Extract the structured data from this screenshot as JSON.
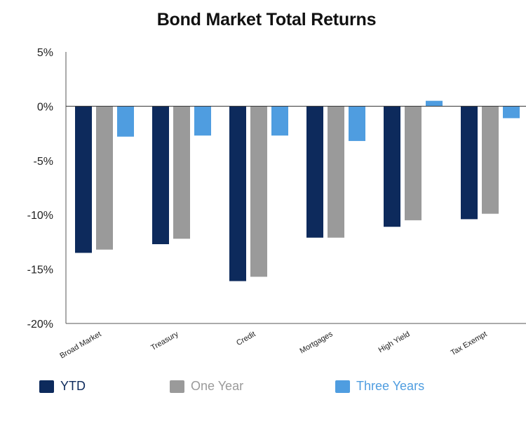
{
  "chart_data": {
    "type": "bar",
    "title": "Bond Market Total Returns",
    "categories": [
      "Broad Market",
      "Treasury",
      "Credit",
      "Mortgages",
      "High Yield",
      "Tax Exempt"
    ],
    "series": [
      {
        "name": "YTD",
        "color": "#0d2a5c",
        "values": [
          -13.5,
          -12.7,
          -16.1,
          -12.1,
          -11.1,
          -10.4
        ]
      },
      {
        "name": "One Year",
        "color": "#9a9a9a",
        "values": [
          -13.2,
          -12.2,
          -15.7,
          -12.1,
          -10.5,
          -9.9
        ]
      },
      {
        "name": "Three Years",
        "color": "#4f9de0",
        "values": [
          -2.8,
          -2.7,
          -2.7,
          -3.2,
          0.5,
          -1.1
        ]
      }
    ],
    "ylim": [
      -20,
      5
    ],
    "yticks": [
      5,
      0,
      -5,
      -10,
      -15,
      -20
    ],
    "ytick_labels": [
      "5%",
      "0%",
      "-5%",
      "-10%",
      "-15%",
      "-20%"
    ],
    "legend_position": "bottom",
    "grid": false
  }
}
